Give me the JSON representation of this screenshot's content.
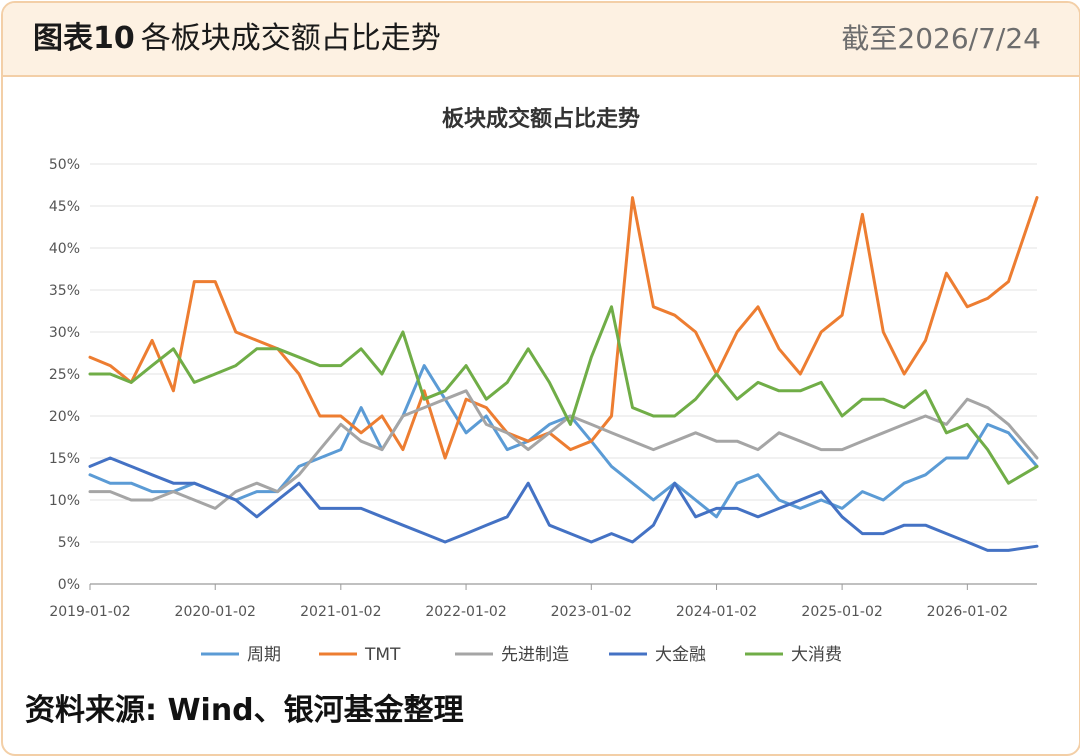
{
  "header": {
    "title_num": "图表10",
    "title_rest": "各板块成交额占比走势",
    "date": "截至2026/7/24"
  },
  "footer": {
    "source": "资料来源: Wind、银河基金整理"
  },
  "chart_data": {
    "type": "line",
    "title": "板块成交额占比走势",
    "xlabel": "",
    "ylabel": "",
    "ylim": [
      0,
      0.5
    ],
    "y_tick_labels": [
      "0%",
      "5%",
      "10%",
      "15%",
      "20%",
      "25%",
      "30%",
      "35%",
      "40%",
      "45%",
      "50%"
    ],
    "x_tick_labels": [
      "2019-01-02",
      "2020-01-02",
      "2021-01-02",
      "2022-01-02",
      "2023-01-02",
      "2024-01-02",
      "2025-01-02",
      "2026-01-02"
    ],
    "xlim": [
      "2019-01-02",
      "2026-07-24"
    ],
    "legend_position": "bottom",
    "grid": "horizontal",
    "dates": [
      "2019-01-02",
      "2019-03-02",
      "2019-05-02",
      "2019-07-02",
      "2019-09-02",
      "2019-11-02",
      "2020-01-02",
      "2020-03-02",
      "2020-05-02",
      "2020-07-02",
      "2020-09-02",
      "2020-11-02",
      "2021-01-02",
      "2021-03-02",
      "2021-05-02",
      "2021-07-02",
      "2021-09-02",
      "2021-11-02",
      "2022-01-02",
      "2022-03-02",
      "2022-05-02",
      "2022-07-02",
      "2022-09-02",
      "2022-11-02",
      "2023-01-02",
      "2023-03-02",
      "2023-05-02",
      "2023-07-02",
      "2023-09-02",
      "2023-11-02",
      "2024-01-02",
      "2024-03-02",
      "2024-05-02",
      "2024-07-02",
      "2024-09-02",
      "2024-11-02",
      "2025-01-02",
      "2025-03-02",
      "2025-05-02",
      "2025-07-02",
      "2025-09-02",
      "2025-11-02",
      "2026-01-02",
      "2026-03-02",
      "2026-05-02",
      "2026-07-24"
    ],
    "series": [
      {
        "name": "周期",
        "color": "#5b9bd5",
        "values": [
          0.13,
          0.12,
          0.12,
          0.11,
          0.11,
          0.12,
          0.11,
          0.1,
          0.11,
          0.11,
          0.14,
          0.15,
          0.16,
          0.21,
          0.16,
          0.2,
          0.26,
          0.22,
          0.18,
          0.2,
          0.16,
          0.17,
          0.19,
          0.2,
          0.17,
          0.14,
          0.12,
          0.1,
          0.12,
          0.1,
          0.08,
          0.12,
          0.13,
          0.1,
          0.09,
          0.1,
          0.09,
          0.11,
          0.1,
          0.12,
          0.13,
          0.15,
          0.15,
          0.19,
          0.18,
          0.14
        ]
      },
      {
        "name": "TMT",
        "color": "#ed7d31",
        "values": [
          0.27,
          0.26,
          0.24,
          0.29,
          0.23,
          0.36,
          0.36,
          0.3,
          0.29,
          0.28,
          0.25,
          0.2,
          0.2,
          0.18,
          0.2,
          0.16,
          0.23,
          0.15,
          0.22,
          0.21,
          0.18,
          0.17,
          0.18,
          0.16,
          0.17,
          0.2,
          0.46,
          0.33,
          0.32,
          0.3,
          0.25,
          0.3,
          0.33,
          0.28,
          0.25,
          0.3,
          0.32,
          0.44,
          0.3,
          0.25,
          0.29,
          0.37,
          0.33,
          0.34,
          0.36,
          0.46
        ]
      },
      {
        "name": "先进制造",
        "color": "#a5a5a5",
        "values": [
          0.11,
          0.11,
          0.1,
          0.1,
          0.11,
          0.1,
          0.09,
          0.11,
          0.12,
          0.11,
          0.13,
          0.16,
          0.19,
          0.17,
          0.16,
          0.2,
          0.21,
          0.22,
          0.23,
          0.19,
          0.18,
          0.16,
          0.18,
          0.2,
          0.19,
          0.18,
          0.17,
          0.16,
          0.17,
          0.18,
          0.17,
          0.17,
          0.16,
          0.18,
          0.17,
          0.16,
          0.16,
          0.17,
          0.18,
          0.19,
          0.2,
          0.19,
          0.22,
          0.21,
          0.19,
          0.15
        ]
      },
      {
        "name": "大金融",
        "color": "#4472c4",
        "values": [
          0.14,
          0.15,
          0.14,
          0.13,
          0.12,
          0.12,
          0.11,
          0.1,
          0.08,
          0.1,
          0.12,
          0.09,
          0.09,
          0.09,
          0.08,
          0.07,
          0.06,
          0.05,
          0.06,
          0.07,
          0.08,
          0.12,
          0.07,
          0.06,
          0.05,
          0.06,
          0.05,
          0.07,
          0.12,
          0.08,
          0.09,
          0.09,
          0.08,
          0.09,
          0.1,
          0.11,
          0.08,
          0.06,
          0.06,
          0.07,
          0.07,
          0.06,
          0.05,
          0.04,
          0.04,
          0.045
        ]
      },
      {
        "name": "大消费",
        "color": "#70ad47",
        "values": [
          0.25,
          0.25,
          0.24,
          0.26,
          0.28,
          0.24,
          0.25,
          0.26,
          0.28,
          0.28,
          0.27,
          0.26,
          0.26,
          0.28,
          0.25,
          0.3,
          0.22,
          0.23,
          0.26,
          0.22,
          0.24,
          0.28,
          0.24,
          0.19,
          0.27,
          0.33,
          0.21,
          0.2,
          0.2,
          0.22,
          0.25,
          0.22,
          0.24,
          0.23,
          0.23,
          0.24,
          0.2,
          0.22,
          0.22,
          0.21,
          0.23,
          0.18,
          0.19,
          0.16,
          0.12,
          0.14
        ]
      }
    ]
  }
}
